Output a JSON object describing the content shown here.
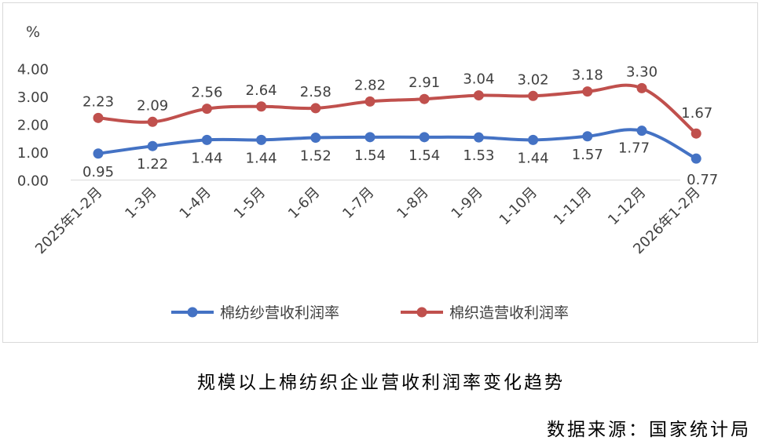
{
  "chart_data": {
    "type": "line",
    "unit_label": "%",
    "categories": [
      "2025年1-2月",
      "1-3月",
      "1-4月",
      "1-5月",
      "1-6月",
      "1-7月",
      "1-8月",
      "1-9月",
      "1-10月",
      "1-11月",
      "1-12月",
      "2026年1-2月"
    ],
    "y_ticks": [
      "4.00",
      "3.00",
      "2.00",
      "1.00",
      "0.00"
    ],
    "ylim": [
      0,
      4
    ],
    "grid": false,
    "legend_position": "bottom",
    "series": [
      {
        "name": "棉纺纱营收利润率",
        "color": "#4472c4",
        "values": [
          0.95,
          1.22,
          1.44,
          1.44,
          1.52,
          1.54,
          1.54,
          1.53,
          1.44,
          1.57,
          1.77,
          0.77
        ],
        "labels": [
          "0.95",
          "1.22",
          "1.44",
          "1.44",
          "1.52",
          "1.54",
          "1.54",
          "1.53",
          "1.44",
          "1.57",
          "1.77",
          "0.77"
        ]
      },
      {
        "name": "棉织造营收利润率",
        "color": "#c0504d",
        "values": [
          2.23,
          2.09,
          2.56,
          2.64,
          2.58,
          2.82,
          2.91,
          3.04,
          3.02,
          3.18,
          3.3,
          1.67
        ],
        "labels": [
          "2.23",
          "2.09",
          "2.56",
          "2.64",
          "2.58",
          "2.82",
          "2.91",
          "3.04",
          "3.02",
          "3.18",
          "3.30",
          "1.67"
        ]
      }
    ]
  },
  "caption": {
    "title": "规模以上棉纺织企业营收利润率变化趋势",
    "source": "数据来源：国家统计局"
  }
}
